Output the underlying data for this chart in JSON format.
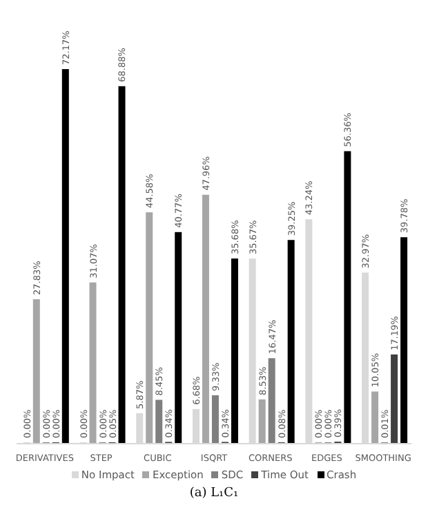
{
  "chart_data": {
    "type": "bar",
    "categories": [
      "DERIVATIVES",
      "STEP",
      "CUBIC",
      "ISQRT",
      "CORNERS",
      "EDGES",
      "SMOOTHING"
    ],
    "series": [
      {
        "name": "No Impact",
        "color": "#d9d9d9",
        "values": [
          0.0,
          0.0,
          5.87,
          6.68,
          35.67,
          43.24,
          32.97
        ],
        "value_labels": [
          "0.00%",
          "0.00%",
          "5.87%",
          "6.68%",
          "35.67%",
          "43.24%",
          "32.97%"
        ]
      },
      {
        "name": "Exception",
        "color": "#a6a6a6",
        "values": [
          27.83,
          31.07,
          44.58,
          47.96,
          8.53,
          0.0,
          10.05
        ],
        "value_labels": [
          "27.83%",
          "31.07%",
          "44.58%",
          "47.96%",
          "8.53%",
          "0.00%",
          "10.05%"
        ]
      },
      {
        "name": "SDC",
        "color": "#7f7f7f",
        "values": [
          0.0,
          0.0,
          8.45,
          9.33,
          16.47,
          0.0,
          0.01
        ],
        "value_labels": [
          "0.00%",
          "0.00%",
          "8.45%",
          "9.33%",
          "16.47%",
          "0.00%",
          "0.01%"
        ]
      },
      {
        "name": "Time Out",
        "color": "#404040",
        "values": [
          0.0,
          0.05,
          0.34,
          0.34,
          0.08,
          0.39,
          17.19
        ],
        "value_labels": [
          "0.00%",
          "0.05%",
          "0.34%",
          "0.34%",
          "0.08%",
          "0.39%",
          "17.19%"
        ]
      },
      {
        "name": "Crash",
        "color": "#000000",
        "values": [
          72.17,
          68.88,
          40.77,
          35.68,
          39.25,
          56.36,
          39.78
        ],
        "value_labels": [
          "72.17%",
          "68.88%",
          "40.77%",
          "35.68%",
          "39.25%",
          "56.36%",
          "39.78%"
        ]
      }
    ],
    "legend": "bottom",
    "annotations": [
      "(a) L₁C₁"
    ]
  }
}
